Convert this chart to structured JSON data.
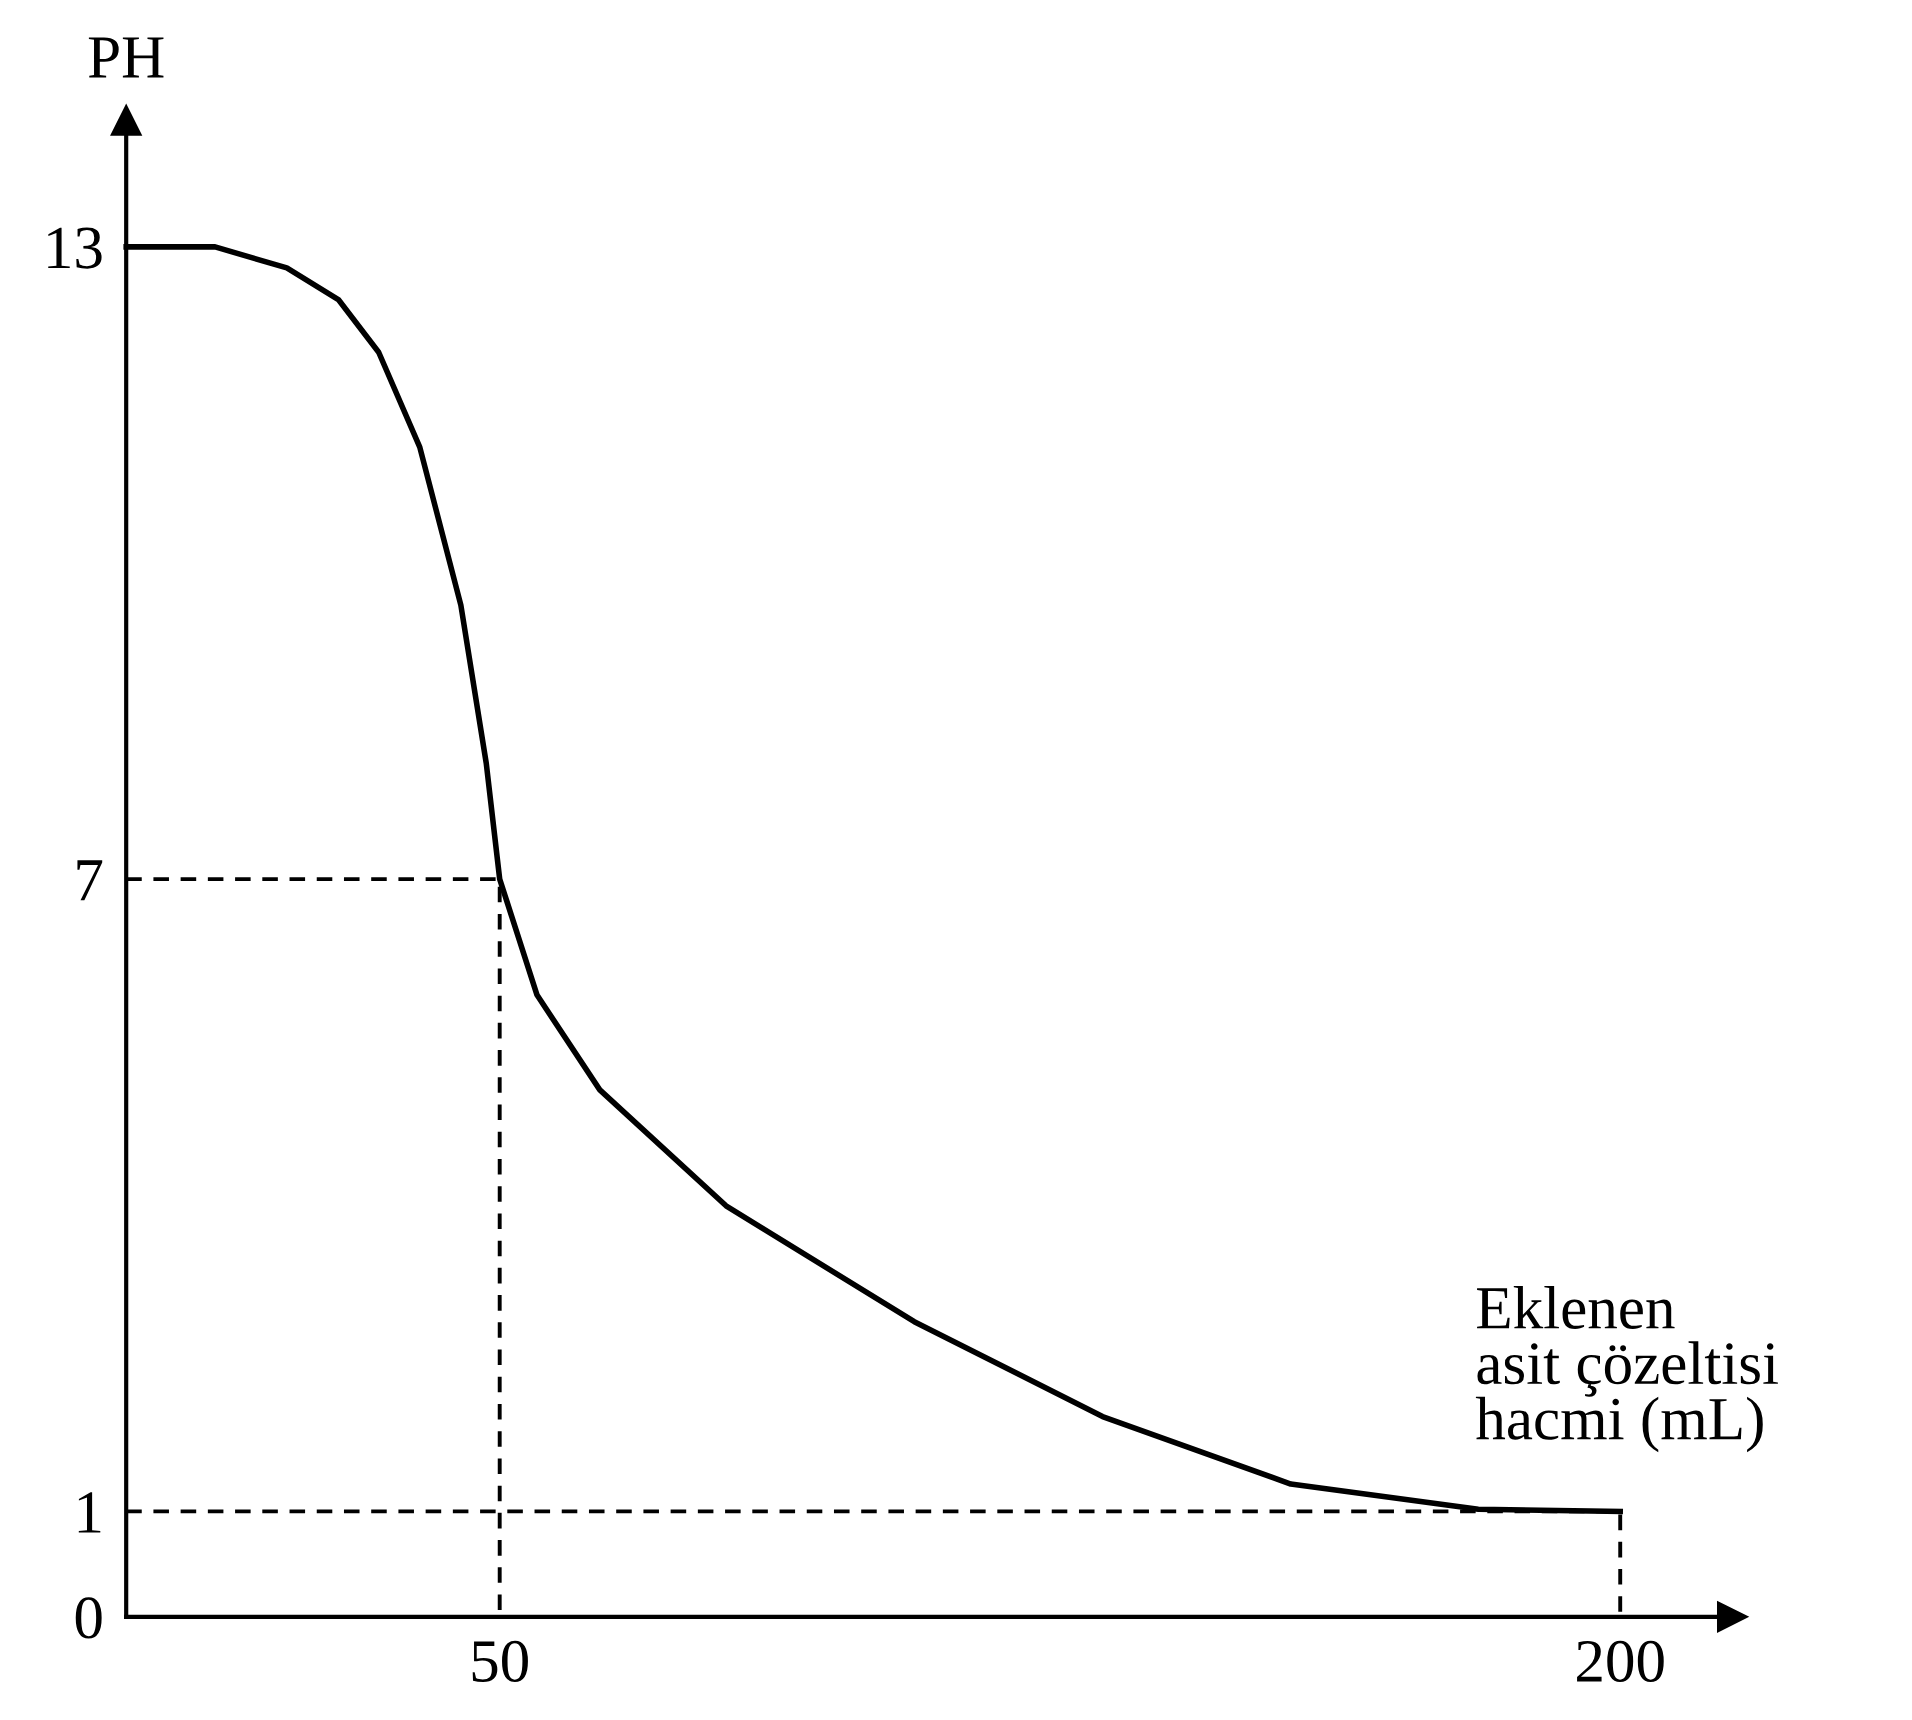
{
  "chart_data": {
    "type": "line",
    "xlabel": "Eklenen\nasit çözeltisi\nhacmi (mL)",
    "ylabel": "PH",
    "series": [
      {
        "color": "#000000",
        "line_style": "solid",
        "x": [
          0,
          11.9,
          21.5,
          28.4,
          33.8,
          39.3,
          44.8,
          48.2,
          50,
          55,
          63.4,
          80.3,
          105.5,
          130.7,
          155.9,
          181,
          200
        ],
        "values": [
          13,
          13,
          12.8,
          12.5,
          12.0,
          11.1,
          9.6,
          8.1,
          7,
          5.9,
          5.0,
          3.9,
          2.8,
          1.9,
          1.26,
          1.02,
          1
        ]
      },
      {
        "color": "#000000",
        "line_style": "dashed",
        "x": [
          0,
          50,
          50
        ],
        "values": [
          7,
          7,
          0
        ]
      },
      {
        "color": "#000000",
        "line_style": "dashed",
        "x": [
          0,
          200,
          200
        ],
        "values": [
          1,
          1,
          0
        ]
      }
    ],
    "xlim": [
      0,
      215
    ],
    "ylim": [
      0,
      14.2
    ],
    "xticks": [
      50,
      200
    ],
    "yticks": [
      0,
      1,
      7,
      13
    ],
    "grid": false,
    "legend": false,
    "marker": "none"
  }
}
